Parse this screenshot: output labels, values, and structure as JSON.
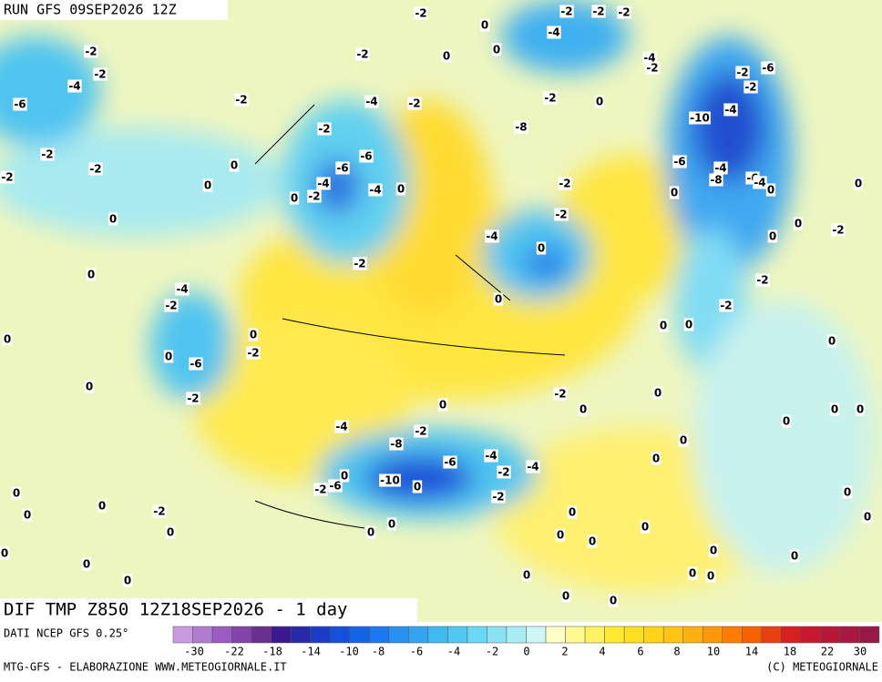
{
  "header": {
    "run": "RUN GFS 09SEP2026 12Z",
    "field": "DIF TMP Z850 12Z18SEP2026 - 1 day"
  },
  "footer": {
    "source": "DATI NCEP GFS 0.25°",
    "credit": "MTG-GFS - ELABORAZIONE WWW.METEOGIORNALE.IT",
    "copyright": "(C) METEOGIORNALE"
  },
  "colorbar": {
    "colors": [
      "#c89be0",
      "#b07cd0",
      "#9a5cc0",
      "#8244a8",
      "#6a3090",
      "#3a1890",
      "#2828a8",
      "#1c3cc8",
      "#1450dc",
      "#1464e8",
      "#1c78f0",
      "#2890f0",
      "#34a4f0",
      "#40b8f0",
      "#50c8f0",
      "#68d8f4",
      "#88e4f4",
      "#a8eef4",
      "#cef6f4",
      "#ffffc8",
      "#fffa90",
      "#fff460",
      "#ffea30",
      "#ffe020",
      "#ffd418",
      "#ffc414",
      "#ffb010",
      "#ff9808",
      "#ff7c00",
      "#f86000",
      "#e84010",
      "#d82020",
      "#c81830",
      "#b81838",
      "#a81840",
      "#981848"
    ],
    "ticks": [
      -30,
      -22,
      -18,
      -14,
      -10,
      -8,
      -6,
      -4,
      -2,
      0,
      2,
      4,
      6,
      8,
      10,
      14,
      18,
      22,
      30
    ]
  },
  "contour_labels": [
    -2,
    -4,
    -2,
    -6,
    -2,
    -2,
    -2,
    -2,
    0,
    0,
    0,
    0,
    -4,
    -2,
    0,
    0,
    -6,
    -2,
    0,
    0,
    -2,
    -2,
    -4,
    -2,
    -2,
    -6,
    -6,
    -4,
    -2,
    0,
    -4,
    0,
    -2,
    0,
    0,
    0,
    -4,
    -2,
    -2,
    -2,
    -2,
    -4,
    -2,
    -2,
    0,
    -8,
    -10,
    -4,
    -2,
    -6,
    -2,
    -6,
    -4,
    -8,
    -6,
    -4,
    0,
    0,
    0,
    -2,
    -2,
    -4,
    0,
    0,
    -2,
    0,
    -2,
    -2,
    0,
    0,
    0,
    0,
    0,
    -2,
    0,
    0,
    0,
    0,
    0,
    0,
    0,
    -4,
    -2,
    -8,
    -6,
    -4,
    -2,
    -4,
    0,
    -2,
    -6,
    -10,
    0,
    -2,
    0,
    0,
    0,
    0,
    0,
    -2,
    0,
    0,
    0,
    0,
    0,
    0,
    0,
    0,
    0,
    0,
    0,
    0,
    0,
    0,
    0,
    0,
    0
  ]
}
